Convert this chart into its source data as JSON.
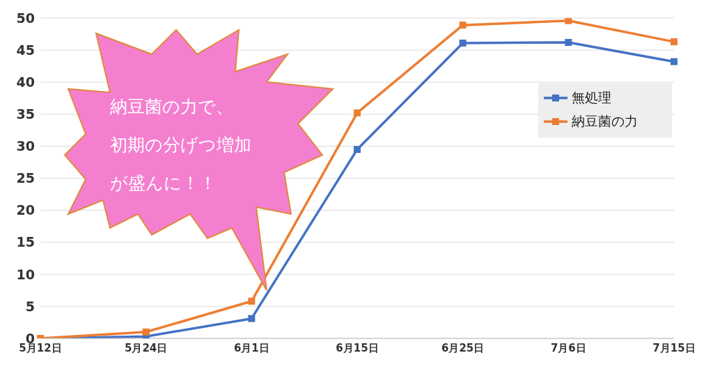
{
  "chart_data": {
    "type": "line",
    "categories": [
      "5月12日",
      "5月24日",
      "6月1日",
      "6月15日",
      "6月25日",
      "7月6日",
      "7月15日"
    ],
    "series": [
      {
        "name": "無処理",
        "color": "#4472c4",
        "values": [
          0,
          0.3,
          3.1,
          29.5,
          46.1,
          46.2,
          43.2
        ]
      },
      {
        "name": "納豆菌の力",
        "color": "#ed7d31",
        "values": [
          0,
          1,
          5.8,
          35.2,
          48.9,
          49.6,
          46.3
        ]
      }
    ],
    "ylim": [
      0,
      50
    ],
    "yticks": [
      0,
      5,
      10,
      15,
      20,
      25,
      30,
      35,
      40,
      45,
      50
    ],
    "grid": "y",
    "legend": "right",
    "marker": "square",
    "line_style": "solid",
    "annotations": [
      "納豆菌の力で、",
      "初期の分げつ増加",
      "が盛んに！！"
    ]
  }
}
